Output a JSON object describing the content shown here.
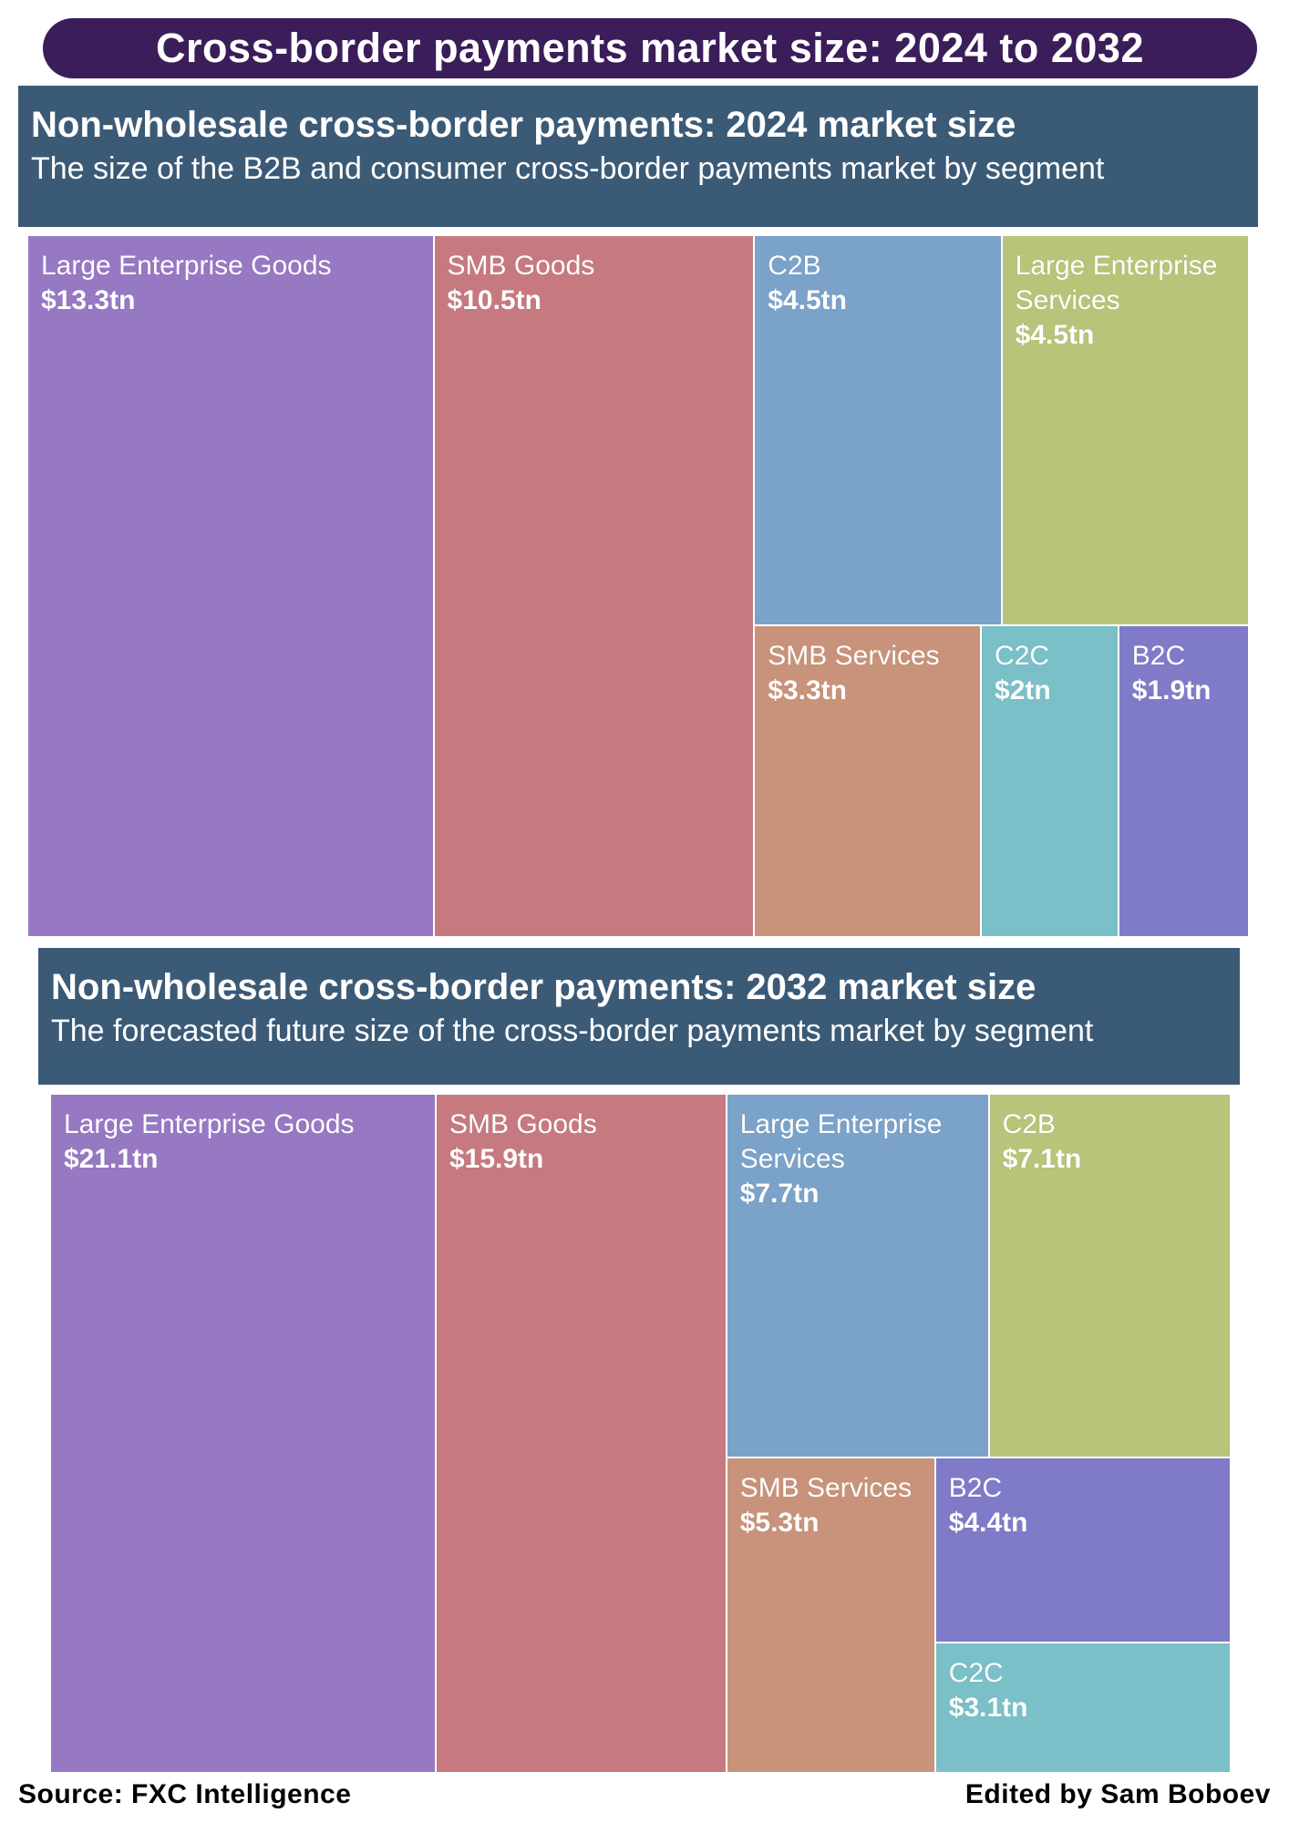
{
  "main_title": "Cross-border payments market size: 2024 to 2032",
  "source": "Source: FXC Intelligence",
  "credit": "Edited by Sam Boboev",
  "chart_data": [
    {
      "type": "treemap",
      "title": "Non-wholesale cross-border payments: 2024 market size",
      "subtitle": "The size of the B2B and consumer cross-border payments market by segment",
      "unit": "$ trillion",
      "items": [
        {
          "label": "Large Enterprise Goods",
          "value": 13.3,
          "display": "$13.3tn",
          "color": "#9778c3"
        },
        {
          "label": "SMB Goods",
          "value": 10.5,
          "display": "$10.5tn",
          "color": "#c67a80"
        },
        {
          "label": "C2B",
          "value": 4.5,
          "display": "$4.5tn",
          "color": "#7ba2c8"
        },
        {
          "label": "Large Enterprise Services",
          "value": 4.5,
          "display": "$4.5tn",
          "color": "#b7c47a"
        },
        {
          "label": "SMB Services",
          "value": 3.3,
          "display": "$3.3tn",
          "color": "#c8937a"
        },
        {
          "label": "C2C",
          "value": 2.0,
          "display": "$2tn",
          "color": "#7bbfc8"
        },
        {
          "label": "B2C",
          "value": 1.9,
          "display": "$1.9tn",
          "color": "#7f7bc8"
        }
      ]
    },
    {
      "type": "treemap",
      "title": "Non-wholesale cross-border payments: 2032 market size",
      "subtitle": "The forecasted future size of the cross-border payments market by segment",
      "unit": "$ trillion",
      "items": [
        {
          "label": "Large Enterprise Goods",
          "value": 21.1,
          "display": "$21.1tn",
          "color": "#9778c3"
        },
        {
          "label": "SMB Goods",
          "value": 15.9,
          "display": "$15.9tn",
          "color": "#c67a80"
        },
        {
          "label": "Large Enterprise Services",
          "value": 7.7,
          "display": "$7.7tn",
          "color": "#7ba2c8"
        },
        {
          "label": "C2B",
          "value": 7.1,
          "display": "$7.1tn",
          "color": "#b7c47a"
        },
        {
          "label": "SMB Services",
          "value": 5.3,
          "display": "$5.3tn",
          "color": "#c8937a"
        },
        {
          "label": "B2C",
          "value": 4.4,
          "display": "$4.4tn",
          "color": "#7f7bc8"
        },
        {
          "label": "C2C",
          "value": 3.1,
          "display": "$3.1tn",
          "color": "#7bbfc8"
        }
      ]
    }
  ]
}
